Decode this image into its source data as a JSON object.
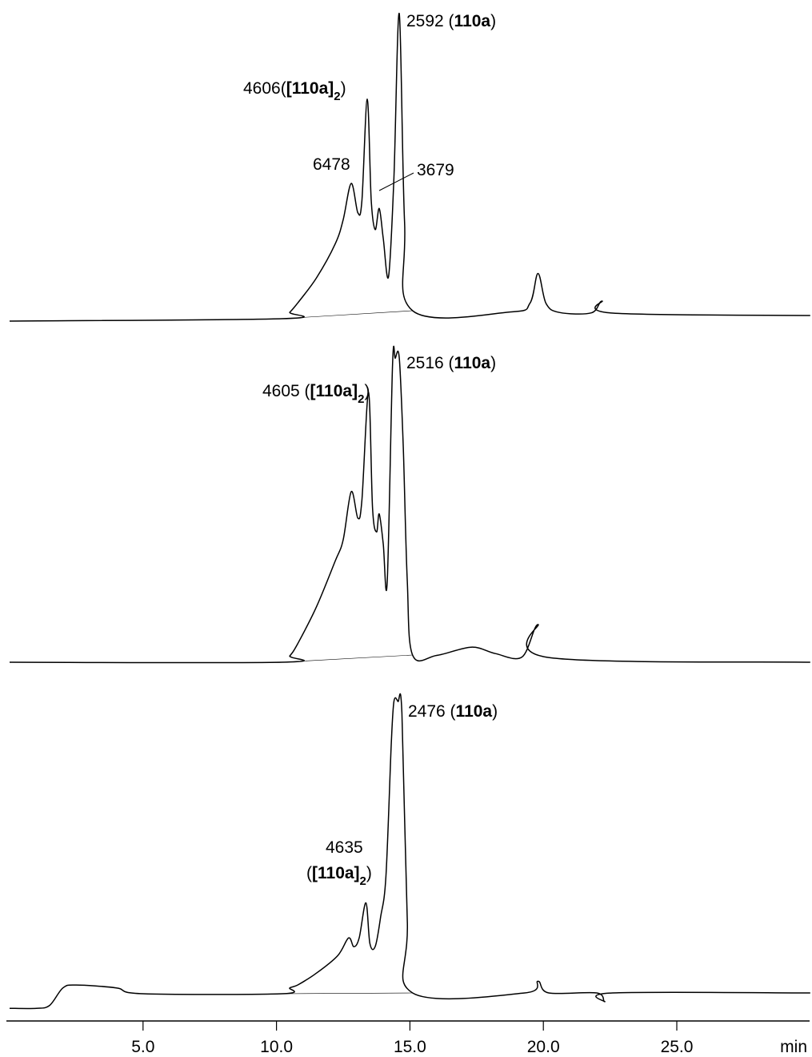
{
  "chart_data": [
    {
      "type": "line",
      "panel": "top",
      "series": [
        {
          "points": [
            [
              0.0,
              0
            ],
            [
              10.2,
              0
            ],
            [
              10.5,
              2
            ],
            [
              10.8,
              5
            ],
            [
              11.5,
              13
            ],
            [
              12.2,
              24
            ],
            [
              12.5,
              32
            ],
            [
              12.8,
              44
            ],
            [
              13.05,
              34
            ],
            [
              13.2,
              38
            ],
            [
              13.4,
              72
            ],
            [
              13.55,
              38
            ],
            [
              13.7,
              28
            ],
            [
              13.85,
              35
            ],
            [
              14.0,
              25
            ],
            [
              14.2,
              12
            ],
            [
              14.4,
              45
            ],
            [
              14.6,
              100
            ],
            [
              14.8,
              30
            ],
            [
              15.1,
              0
            ],
            [
              18.8,
              0
            ],
            [
              19.5,
              3
            ],
            [
              19.8,
              13
            ],
            [
              20.1,
              3
            ],
            [
              20.6,
              0
            ],
            [
              21.8,
              0
            ],
            [
              22.2,
              4
            ],
            [
              22.6,
              0
            ],
            [
              30.0,
              0
            ]
          ],
          "min": 0,
          "max": 100
        }
      ],
      "annotations": [
        {
          "id": "a1",
          "value": "2592",
          "label": "110a",
          "subscript": ""
        },
        {
          "id": "a2",
          "value": "4606",
          "label": "[110a]",
          "subscript": "2"
        },
        {
          "id": "a3",
          "value": "6478",
          "label": "",
          "subscript": ""
        },
        {
          "id": "a4",
          "value": "3679",
          "label": "",
          "subscript": ""
        }
      ]
    },
    {
      "type": "line",
      "panel": "middle",
      "series": [
        {
          "points": [
            [
              0.0,
              0
            ],
            [
              10.2,
              0
            ],
            [
              10.5,
              2
            ],
            [
              10.8,
              6
            ],
            [
              11.5,
              18
            ],
            [
              12.2,
              33
            ],
            [
              12.5,
              40
            ],
            [
              12.8,
              56
            ],
            [
              13.05,
              47
            ],
            [
              13.2,
              53
            ],
            [
              13.45,
              89
            ],
            [
              13.6,
              50
            ],
            [
              13.75,
              42
            ],
            [
              13.85,
              48
            ],
            [
              14.0,
              38
            ],
            [
              14.15,
              25
            ],
            [
              14.35,
              98
            ],
            [
              14.45,
              100
            ],
            [
              14.6,
              100
            ],
            [
              14.75,
              70
            ],
            [
              14.9,
              25
            ],
            [
              15.1,
              0
            ],
            [
              16.0,
              0
            ],
            [
              17.3,
              3
            ],
            [
              18.2,
              1
            ],
            [
              19.2,
              0
            ],
            [
              19.8,
              11
            ],
            [
              20.2,
              0
            ],
            [
              30.0,
              0
            ]
          ],
          "min": 0,
          "max": 100
        }
      ],
      "annotations": [
        {
          "id": "b1",
          "value": "2516",
          "label": "110a",
          "subscript": ""
        },
        {
          "id": "b2",
          "value": "4605",
          "label": "[110a]",
          "subscript": "2"
        }
      ]
    },
    {
      "type": "line",
      "panel": "bottom",
      "series": [
        {
          "points": [
            [
              0.0,
              -5
            ],
            [
              1.0,
              -5
            ],
            [
              1.5,
              -4
            ],
            [
              2.0,
              2
            ],
            [
              2.5,
              3
            ],
            [
              4.0,
              2
            ],
            [
              5.0,
              0
            ],
            [
              10.2,
              0
            ],
            [
              10.5,
              2
            ],
            [
              10.8,
              3
            ],
            [
              11.5,
              7
            ],
            [
              12.3,
              13
            ],
            [
              12.7,
              19
            ],
            [
              12.9,
              16
            ],
            [
              13.1,
              19
            ],
            [
              13.35,
              31
            ],
            [
              13.5,
              17
            ],
            [
              13.7,
              16
            ],
            [
              13.9,
              26
            ],
            [
              14.1,
              40
            ],
            [
              14.3,
              85
            ],
            [
              14.4,
              100
            ],
            [
              14.55,
              100
            ],
            [
              14.7,
              96
            ],
            [
              14.9,
              25
            ],
            [
              15.1,
              0
            ],
            [
              19.3,
              0
            ],
            [
              19.8,
              4
            ],
            [
              20.2,
              0
            ],
            [
              22.0,
              0
            ],
            [
              22.3,
              -3
            ],
            [
              22.6,
              0
            ],
            [
              30.0,
              0
            ]
          ],
          "min": 0,
          "max": 100
        }
      ],
      "annotations": [
        {
          "id": "c1",
          "value": "2476",
          "label": "110a",
          "subscript": ""
        },
        {
          "id": "c2",
          "value": "4635",
          "label": "[110a]",
          "subscript": "2"
        }
      ]
    }
  ],
  "x_axis": {
    "ticks": [
      5,
      10,
      15,
      20,
      25
    ],
    "tick_labels": [
      "5.0",
      "10.0",
      "15.0",
      "20.0",
      "25.0"
    ],
    "unit": "min",
    "range": [
      0,
      30
    ]
  }
}
